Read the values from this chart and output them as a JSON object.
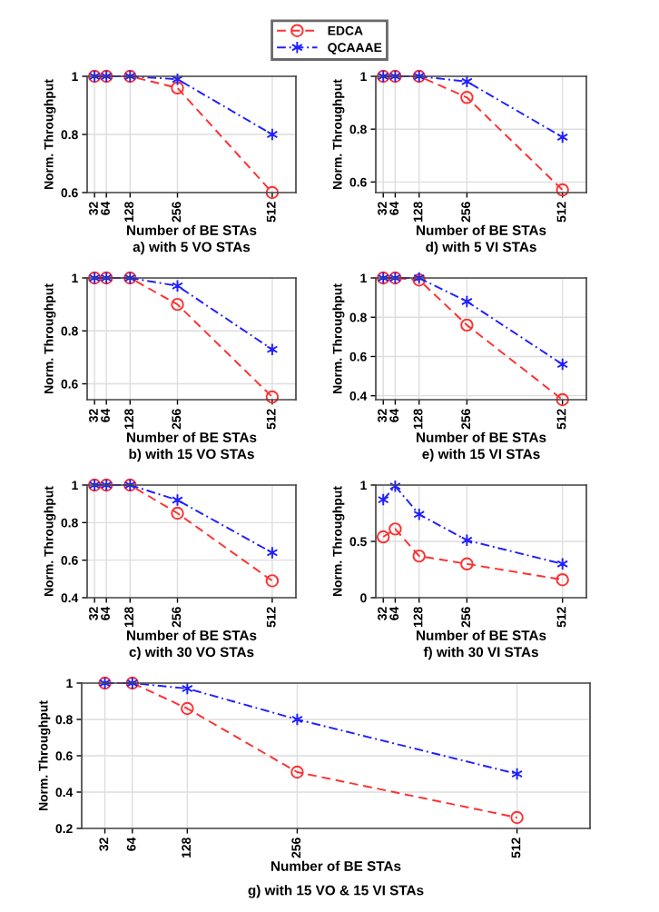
{
  "chart_data": [
    {
      "type": "line",
      "title": "a) with 5 VO STAs",
      "xlabel": "Number of BE STAs",
      "ylabel": "Norm. Throughput",
      "x": [
        32,
        64,
        128,
        256,
        512
      ],
      "xlim": [
        12,
        576
      ],
      "xticks": [
        32,
        64,
        128,
        256,
        512
      ],
      "ylim": [
        0.6,
        1
      ],
      "yticks": [
        0.6,
        0.8,
        1
      ],
      "grid": true,
      "legend": "top",
      "series": [
        {
          "name": "EDCA",
          "color": "#ff3030",
          "marker": "circle",
          "line_style": "dashed",
          "values": [
            1,
            1,
            1,
            0.96,
            0.6
          ]
        },
        {
          "name": "QCAAAE",
          "color": "#2020ff",
          "marker": "cross",
          "line_style": "dashdot",
          "values": [
            1,
            1,
            1,
            0.99,
            0.8
          ]
        }
      ]
    },
    {
      "type": "line",
      "title": "d) with 5 VI STAs",
      "xlabel": "Number of BE STAs",
      "ylabel": "Norm. Throughput",
      "x": [
        32,
        64,
        128,
        256,
        512
      ],
      "xlim": [
        12,
        576
      ],
      "xticks": [
        32,
        64,
        128,
        256,
        512
      ],
      "ylim": [
        0.56,
        1
      ],
      "yticks": [
        0.6,
        0.8,
        1
      ],
      "grid": true,
      "series": [
        {
          "color": "#ff3030",
          "marker": "circle",
          "line_style": "dashed",
          "values": [
            1,
            1,
            1,
            0.92,
            0.57
          ]
        },
        {
          "color": "#2020ff",
          "marker": "cross",
          "line_style": "dashdot",
          "values": [
            1,
            1,
            1,
            0.98,
            0.77
          ]
        }
      ]
    },
    {
      "type": "line",
      "title": "b) with 15 VO STAs",
      "xlabel": "Number of BE STAs",
      "ylabel": "Norm. Throughput",
      "x": [
        32,
        64,
        128,
        256,
        512
      ],
      "xlim": [
        12,
        576
      ],
      "xticks": [
        32,
        64,
        128,
        256,
        512
      ],
      "ylim": [
        0.54,
        1
      ],
      "yticks": [
        0.6,
        0.8,
        1
      ],
      "grid": true,
      "series": [
        {
          "color": "#ff3030",
          "marker": "circle",
          "line_style": "dashed",
          "values": [
            1,
            1,
            1,
            0.9,
            0.55
          ]
        },
        {
          "color": "#2020ff",
          "marker": "cross",
          "line_style": "dashdot",
          "values": [
            1,
            1,
            1,
            0.97,
            0.73
          ]
        }
      ]
    },
    {
      "type": "line",
      "title": "e) with 15 VI STAs",
      "xlabel": "Number of BE STAs",
      "ylabel": "Norm. Throughput",
      "x": [
        32,
        64,
        128,
        256,
        512
      ],
      "xlim": [
        12,
        576
      ],
      "xticks": [
        32,
        64,
        128,
        256,
        512
      ],
      "ylim": [
        0.38,
        1
      ],
      "yticks": [
        0.4,
        0.6,
        0.8,
        1
      ],
      "grid": true,
      "series": [
        {
          "color": "#ff3030",
          "marker": "circle",
          "line_style": "dashed",
          "values": [
            1,
            1,
            0.99,
            0.76,
            0.38
          ]
        },
        {
          "color": "#2020ff",
          "marker": "cross",
          "line_style": "dashdot",
          "values": [
            1,
            1,
            1,
            0.88,
            0.56
          ]
        }
      ]
    },
    {
      "type": "line",
      "title": "c) with 30 VO STAs",
      "xlabel": "Number of BE STAs",
      "ylabel": "Norm. Throughput",
      "x": [
        32,
        64,
        128,
        256,
        512
      ],
      "xlim": [
        12,
        576
      ],
      "xticks": [
        32,
        64,
        128,
        256,
        512
      ],
      "ylim": [
        0.4,
        1
      ],
      "yticks": [
        0.4,
        0.6,
        0.8,
        1
      ],
      "grid": true,
      "series": [
        {
          "color": "#ff3030",
          "marker": "circle",
          "line_style": "dashed",
          "values": [
            1,
            1,
            1,
            0.85,
            0.49
          ]
        },
        {
          "color": "#2020ff",
          "marker": "cross",
          "line_style": "dashdot",
          "values": [
            1,
            1,
            1,
            0.92,
            0.64
          ]
        }
      ]
    },
    {
      "type": "line",
      "title": "f) with 30 VI STAs",
      "xlabel": "Number of BE STAs",
      "ylabel": "Norm. Throughput",
      "x": [
        32,
        64,
        128,
        256,
        512
      ],
      "xlim": [
        12,
        576
      ],
      "xticks": [
        32,
        64,
        128,
        256,
        512
      ],
      "ylim": [
        0,
        1
      ],
      "yticks": [
        0,
        0.5,
        1
      ],
      "grid": true,
      "series": [
        {
          "color": "#ff3030",
          "marker": "circle",
          "line_style": "dashed",
          "values": [
            0.54,
            0.61,
            0.37,
            0.3,
            0.16
          ]
        },
        {
          "color": "#2020ff",
          "marker": "cross",
          "line_style": "dashdot",
          "values": [
            0.87,
            0.99,
            0.74,
            0.51,
            0.3
          ]
        }
      ]
    },
    {
      "type": "line",
      "title": "g) with 15 VO & 15 VI STAs",
      "xlabel": "Number of BE STAs",
      "ylabel": "Norm. Throughput",
      "x": [
        32,
        64,
        128,
        256,
        512
      ],
      "xlim": [
        5,
        597
      ],
      "xticks": [
        32,
        64,
        128,
        256,
        512
      ],
      "ylim": [
        0.2,
        1
      ],
      "yticks": [
        0.2,
        0.4,
        0.6,
        0.8,
        1
      ],
      "grid": true,
      "series": [
        {
          "color": "#ff3030",
          "marker": "circle",
          "line_style": "dashed",
          "values": [
            1,
            1,
            0.86,
            0.51,
            0.26
          ]
        },
        {
          "color": "#2020ff",
          "marker": "cross",
          "line_style": "dashdot",
          "values": [
            1,
            1,
            0.97,
            0.8,
            0.5
          ]
        }
      ]
    }
  ]
}
